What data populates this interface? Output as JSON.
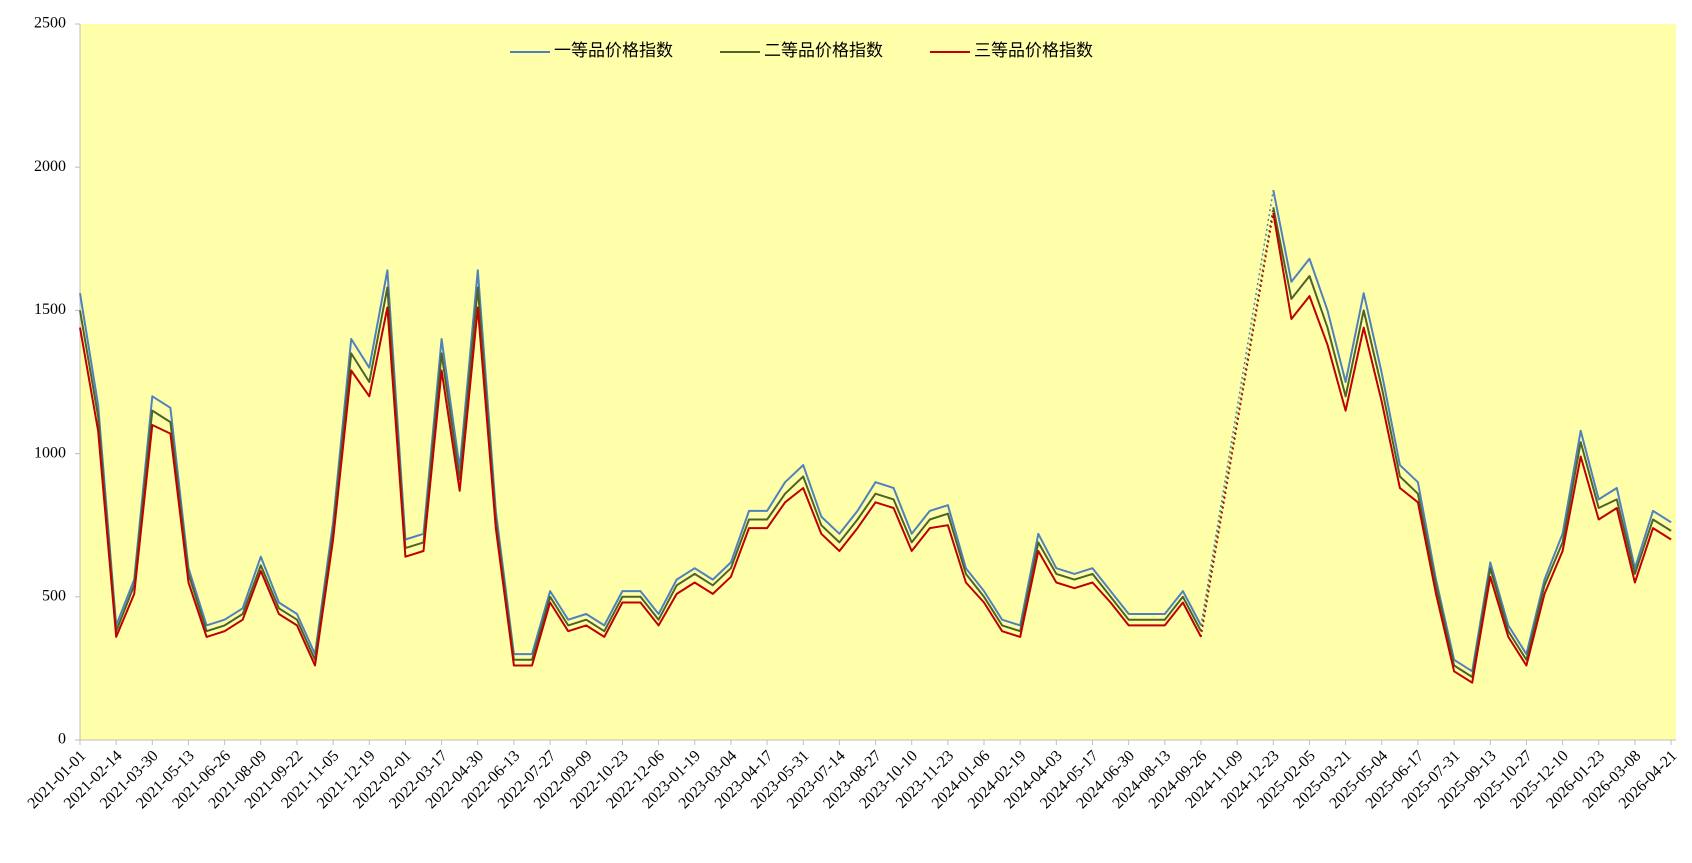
{
  "chart_data": {
    "type": "line",
    "x": [
      "2021-01-01",
      "2021-01-23",
      "2021-02-14",
      "2021-03-08",
      "2021-03-30",
      "2021-04-21",
      "2021-05-13",
      "2021-06-04",
      "2021-06-26",
      "2021-07-18",
      "2021-08-09",
      "2021-08-31",
      "2021-09-22",
      "2021-10-14",
      "2021-11-05",
      "2021-11-27",
      "2021-12-19",
      "2022-01-10",
      "2022-02-01",
      "2022-02-23",
      "2022-03-17",
      "2022-04-08",
      "2022-04-30",
      "2022-05-22",
      "2022-06-13",
      "2022-07-05",
      "2022-07-27",
      "2022-08-18",
      "2022-09-09",
      "2022-10-01",
      "2022-10-23",
      "2022-11-14",
      "2022-12-06",
      "2022-12-28",
      "2023-01-19",
      "2023-02-10",
      "2023-03-04",
      "2023-03-26",
      "2023-04-17",
      "2023-05-09",
      "2023-05-31",
      "2023-06-22",
      "2023-07-14",
      "2023-08-05",
      "2023-08-27",
      "2023-09-18",
      "2023-10-10",
      "2023-11-01",
      "2023-11-23",
      "2023-12-15",
      "2024-01-06",
      "2024-01-28",
      "2024-02-19",
      "2024-03-12",
      "2024-04-03",
      "2024-04-25",
      "2024-05-17",
      "2024-06-08",
      "2024-06-30",
      "2024-07-22",
      "2024-08-13",
      "2024-09-04",
      "2024-09-26",
      "2024-10-18",
      "2024-11-09",
      "2024-12-01",
      "2024-12-23",
      "2025-01-14",
      "2025-02-05",
      "2025-02-27",
      "2025-03-21",
      "2025-04-12",
      "2025-05-04",
      "2025-05-26",
      "2025-06-17",
      "2025-07-09",
      "2025-07-31",
      "2025-08-22",
      "2025-09-13",
      "2025-10-05",
      "2025-10-27",
      "2025-11-18",
      "2025-12-10",
      "2026-01-01",
      "2026-01-23",
      "2026-02-14",
      "2026-03-08",
      "2026-03-30",
      "2026-04-21"
    ],
    "series": [
      {
        "name": "一等品价格指数",
        "color": "#4f81bd",
        "values": [
          1560,
          1170,
          400,
          560,
          1200,
          1160,
          600,
          400,
          420,
          460,
          640,
          480,
          440,
          300,
          760,
          1400,
          1300,
          1640,
          700,
          720,
          1400,
          950,
          1640,
          800,
          300,
          300,
          520,
          420,
          440,
          400,
          520,
          520,
          440,
          560,
          600,
          560,
          620,
          800,
          800,
          900,
          960,
          780,
          720,
          800,
          900,
          880,
          720,
          800,
          820,
          600,
          520,
          420,
          400,
          720,
          600,
          580,
          600,
          520,
          440,
          440,
          440,
          520,
          400,
          null,
          null,
          null,
          1920,
          1600,
          1680,
          1500,
          1250,
          1560,
          1280,
          960,
          900,
          560,
          280,
          240,
          620,
          400,
          300,
          560,
          720,
          1080,
          840,
          880,
          600,
          800,
          760
        ]
      },
      {
        "name": "二等品价格指数",
        "color": "#4f6228",
        "values": [
          1500,
          1130,
          380,
          540,
          1150,
          1110,
          580,
          380,
          400,
          440,
          610,
          460,
          420,
          280,
          730,
          1350,
          1250,
          1580,
          670,
          690,
          1350,
          910,
          1580,
          770,
          280,
          280,
          500,
          400,
          420,
          380,
          500,
          500,
          420,
          540,
          580,
          540,
          600,
          770,
          770,
          860,
          920,
          750,
          690,
          770,
          860,
          840,
          690,
          770,
          790,
          580,
          500,
          400,
          380,
          690,
          580,
          560,
          580,
          500,
          420,
          420,
          420,
          500,
          380,
          null,
          null,
          null,
          1860,
          1540,
          1620,
          1440,
          1200,
          1500,
          1230,
          920,
          860,
          540,
          260,
          220,
          600,
          380,
          280,
          540,
          690,
          1040,
          810,
          840,
          580,
          770,
          730
        ]
      },
      {
        "name": "三等品价格指数",
        "color": "#c00000",
        "values": [
          1440,
          1080,
          360,
          510,
          1100,
          1070,
          550,
          360,
          380,
          420,
          590,
          440,
          400,
          260,
          700,
          1290,
          1200,
          1510,
          640,
          660,
          1290,
          870,
          1510,
          740,
          260,
          260,
          480,
          380,
          400,
          360,
          480,
          480,
          400,
          510,
          550,
          510,
          570,
          740,
          740,
          830,
          880,
          720,
          660,
          740,
          830,
          810,
          660,
          740,
          750,
          550,
          480,
          380,
          360,
          660,
          550,
          530,
          550,
          480,
          400,
          400,
          400,
          480,
          360,
          null,
          null,
          null,
          1840,
          1470,
          1550,
          1380,
          1150,
          1440,
          1180,
          880,
          830,
          510,
          240,
          200,
          570,
          360,
          260,
          510,
          660,
          990,
          770,
          810,
          550,
          740,
          700
        ]
      }
    ],
    "xlim": [
      "2021-01-01",
      "2026-04-27"
    ],
    "xticks": [
      "2021-01-01",
      "2021-02-14",
      "2021-03-30",
      "2021-05-13",
      "2021-06-26",
      "2021-08-09",
      "2021-09-22",
      "2021-11-05",
      "2021-12-19",
      "2022-02-01",
      "2022-03-17",
      "2022-04-30",
      "2022-06-13",
      "2022-07-27",
      "2022-09-09",
      "2022-10-23",
      "2022-12-06",
      "2023-01-19",
      "2023-03-04",
      "2023-04-17",
      "2023-05-31",
      "2023-07-14",
      "2023-08-27",
      "2023-10-10",
      "2023-11-23",
      "2024-01-06",
      "2024-02-19",
      "2024-04-03",
      "2024-05-17",
      "2024-06-30",
      "2024-08-13",
      "2024-09-26",
      "2024-11-09",
      "2024-12-23",
      "2025-02-05",
      "2025-03-21",
      "2025-05-04",
      "2025-06-17",
      "2025-07-31",
      "2025-09-13",
      "2025-10-27",
      "2025-12-10",
      "2026-01-23",
      "2026-03-08",
      "2026-04-21"
    ],
    "ylim": [
      0,
      2500
    ],
    "yticks": [
      0,
      500,
      1000,
      1500,
      2000,
      2500
    ],
    "grid": false,
    "plot_background": "#ffffaa",
    "legend_position": "top"
  }
}
